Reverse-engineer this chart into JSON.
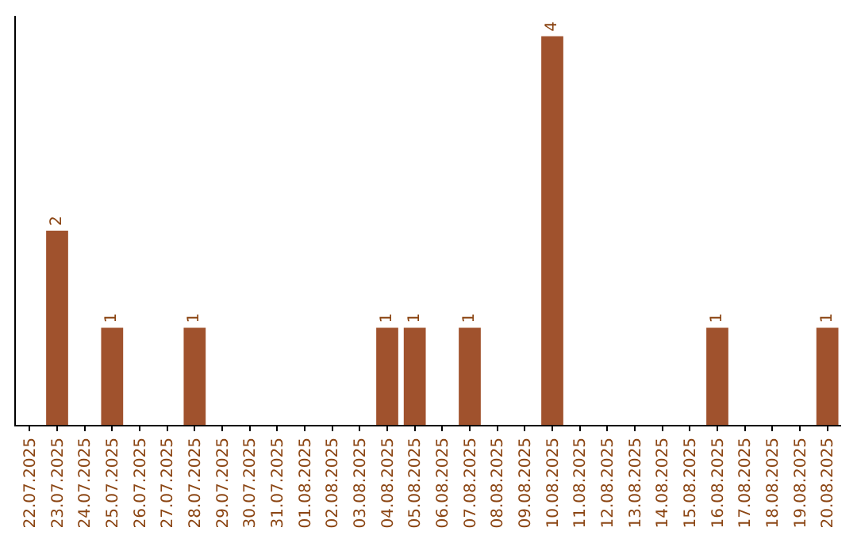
{
  "chart_data": {
    "type": "bar",
    "categories": [
      "22.07.2025",
      "23.07.2025",
      "24.07.2025",
      "25.07.2025",
      "26.07.2025",
      "27.07.2025",
      "28.07.2025",
      "29.07.2025",
      "30.07.2025",
      "31.07.2025",
      "01.08.2025",
      "02.08.2025",
      "03.08.2025",
      "04.08.2025",
      "05.08.2025",
      "06.08.2025",
      "07.08.2025",
      "08.08.2025",
      "09.08.2025",
      "10.08.2025",
      "11.08.2025",
      "12.08.2025",
      "13.08.2025",
      "14.08.2025",
      "15.08.2025",
      "16.08.2025",
      "17.08.2025",
      "18.08.2025",
      "19.08.2025",
      "20.08.2025"
    ],
    "values": [
      null,
      2,
      null,
      1,
      null,
      null,
      1,
      null,
      null,
      null,
      null,
      null,
      null,
      1,
      1,
      null,
      1,
      null,
      null,
      4,
      null,
      null,
      null,
      null,
      null,
      1,
      null,
      null,
      null,
      1
    ],
    "color": "#a0522d",
    "data_labels": true,
    "grid": false,
    "legend": false
  }
}
